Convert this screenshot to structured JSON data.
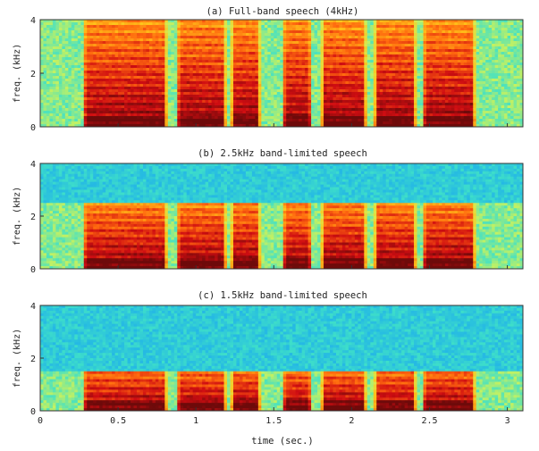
{
  "figure": {
    "xlabel": "time (sec.)",
    "x_ticks": [
      "0",
      "0.5",
      "1",
      "1.5",
      "2",
      "2.5",
      "3"
    ]
  },
  "chart_data": [
    {
      "type": "heatmap",
      "title": "(a) Full-band speech (4kHz)",
      "ylabel": "freq. (kHz)",
      "xlim": [
        0,
        3.1
      ],
      "ylim": [
        0,
        4
      ],
      "y_ticks": [
        "0",
        "2",
        "4"
      ],
      "band_limit_khz": 4.0,
      "voiced_segments_sec": [
        [
          0.27,
          0.82
        ],
        [
          0.87,
          1.2
        ],
        [
          1.22,
          1.42
        ],
        [
          1.55,
          1.75
        ],
        [
          1.8,
          2.1
        ],
        [
          2.14,
          2.42
        ],
        [
          2.45,
          2.8
        ]
      ],
      "colormap": [
        "#1f4fd6",
        "#21b3e8",
        "#3fe0c8",
        "#cdf25a",
        "#ffc21a",
        "#ff6a0f",
        "#cf0d12",
        "#6e0a0a"
      ]
    },
    {
      "type": "heatmap",
      "title": "(b) 2.5kHz band-limited speech",
      "ylabel": "freq. (kHz)",
      "xlim": [
        0,
        3.1
      ],
      "ylim": [
        0,
        4
      ],
      "y_ticks": [
        "0",
        "2",
        "4"
      ],
      "band_limit_khz": 2.5,
      "voiced_segments_sec": [
        [
          0.27,
          0.82
        ],
        [
          0.87,
          1.2
        ],
        [
          1.22,
          1.42
        ],
        [
          1.55,
          1.75
        ],
        [
          1.8,
          2.1
        ],
        [
          2.14,
          2.42
        ],
        [
          2.45,
          2.8
        ]
      ],
      "colormap": [
        "#1f4fd6",
        "#21b3e8",
        "#3fe0c8",
        "#cdf25a",
        "#ffc21a",
        "#ff6a0f",
        "#cf0d12",
        "#6e0a0a"
      ]
    },
    {
      "type": "heatmap",
      "title": "(c) 1.5kHz band-limited speech",
      "ylabel": "freq. (kHz)",
      "xlim": [
        0,
        3.1
      ],
      "ylim": [
        0,
        4
      ],
      "y_ticks": [
        "0",
        "2",
        "4"
      ],
      "band_limit_khz": 1.5,
      "voiced_segments_sec": [
        [
          0.27,
          0.82
        ],
        [
          0.87,
          1.2
        ],
        [
          1.22,
          1.42
        ],
        [
          1.55,
          1.75
        ],
        [
          1.8,
          2.1
        ],
        [
          2.14,
          2.42
        ],
        [
          2.45,
          2.8
        ]
      ],
      "colormap": [
        "#1f4fd6",
        "#21b3e8",
        "#3fe0c8",
        "#cdf25a",
        "#ffc21a",
        "#ff6a0f",
        "#cf0d12",
        "#6e0a0a"
      ]
    }
  ]
}
